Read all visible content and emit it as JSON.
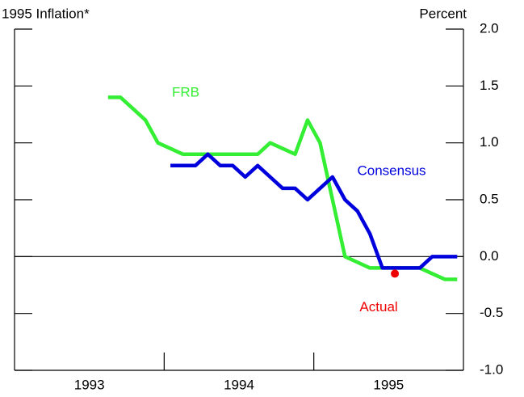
{
  "chart_data": {
    "type": "line",
    "title": "1995 Inflation*",
    "y_axis_label": "Percent",
    "xlim": [
      0,
      36
    ],
    "xticks": [
      {
        "value": 6,
        "label": "1993"
      },
      {
        "value": 18,
        "label": "1994"
      },
      {
        "value": 30,
        "label": "1995"
      }
    ],
    "year_boundaries": [
      12,
      24
    ],
    "ylim": [
      -1,
      2
    ],
    "yticks": [
      {
        "value": 2,
        "label": "2.0"
      },
      {
        "value": 1.5,
        "label": "1.5"
      },
      {
        "value": 1,
        "label": "1.0"
      },
      {
        "value": 0.5,
        "label": "0.5"
      },
      {
        "value": 0,
        "label": "0.0"
      },
      {
        "value": -0.5,
        "label": "-0.5"
      },
      {
        "value": -1,
        "label": "-1.0"
      }
    ],
    "reference_line": 0,
    "series": [
      {
        "name": "FRB",
        "color": "#33ee33",
        "x": [
          7.5,
          8.5,
          9.5,
          10.5,
          11.5,
          12.5,
          13.5,
          14.5,
          15.5,
          16.5,
          17.5,
          18.5,
          19.5,
          20.5,
          21.5,
          22.5,
          23.5,
          24.5,
          25.5,
          26.5,
          27.5,
          28.5,
          29.5,
          30.5,
          31.5,
          32.5,
          33.5,
          34.5,
          35.5
        ],
        "values": [
          1.4,
          1.4,
          1.3,
          1.2,
          1.0,
          0.95,
          0.9,
          0.9,
          0.9,
          0.9,
          0.9,
          0.9,
          0.9,
          1.0,
          0.95,
          0.9,
          1.2,
          1.0,
          0.5,
          0.0,
          -0.05,
          -0.1,
          -0.1,
          -0.1,
          -0.1,
          -0.1,
          -0.15,
          -0.2,
          -0.2
        ]
      },
      {
        "name": "Consensus",
        "color": "#0000dd",
        "x": [
          12.5,
          13.5,
          14.5,
          15.5,
          16.5,
          17.5,
          18.5,
          19.5,
          20.5,
          21.5,
          22.5,
          23.5,
          24.5,
          25.5,
          26.5,
          27.5,
          28.5,
          29.5,
          30.5,
          31.5,
          32.5,
          33.5,
          34.5,
          35.5
        ],
        "values": [
          0.8,
          0.8,
          0.8,
          0.9,
          0.8,
          0.8,
          0.7,
          0.8,
          0.7,
          0.6,
          0.6,
          0.5,
          0.6,
          0.7,
          0.5,
          0.4,
          0.2,
          -0.1,
          -0.1,
          -0.1,
          -0.1,
          0.0,
          0.0,
          0.0
        ]
      }
    ],
    "points": [
      {
        "name": "Actual",
        "color": "#ee0000",
        "x": 30.5,
        "value": -0.15
      }
    ]
  }
}
